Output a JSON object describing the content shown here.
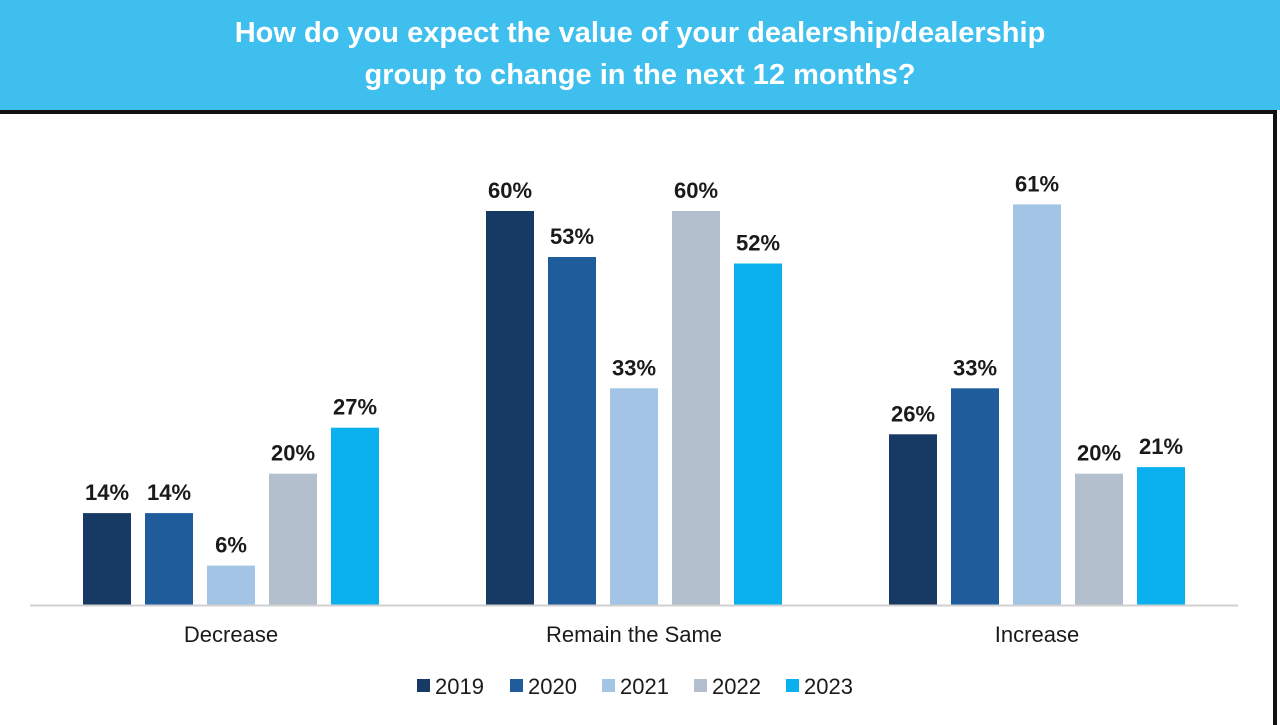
{
  "title": "How do you expect the value of your dealership/dealership group to change in the next 12 months?",
  "chart_data": {
    "type": "bar",
    "title": "How do you expect the value of your dealership/dealership group to change in the next 12 months?",
    "categories": [
      "Decrease",
      "Remain the Same",
      "Increase"
    ],
    "series": [
      {
        "name": "2019",
        "color": "#173a64",
        "values": [
          14,
          60,
          26
        ],
        "labels": [
          "14%",
          "60%",
          "26%"
        ]
      },
      {
        "name": "2020",
        "color": "#1f5c9c",
        "values": [
          14,
          53,
          33
        ],
        "labels": [
          "14%",
          "53%",
          "33%"
        ]
      },
      {
        "name": "2021",
        "color": "#a3c4e4",
        "values": [
          6,
          33,
          61
        ],
        "labels": [
          "6%",
          "33%",
          "61%"
        ]
      },
      {
        "name": "2022",
        "color": "#b4bfcd",
        "values": [
          20,
          60,
          20
        ],
        "labels": [
          "20%",
          "60%",
          "20%"
        ]
      },
      {
        "name": "2023",
        "color": "#0bb0ee",
        "values": [
          27,
          52,
          21
        ],
        "labels": [
          "27%",
          "52%",
          "21%"
        ]
      }
    ],
    "ylim": [
      0,
      65
    ],
    "xlabel": "",
    "ylabel": "",
    "grid": false,
    "legend_position": "bottom"
  }
}
